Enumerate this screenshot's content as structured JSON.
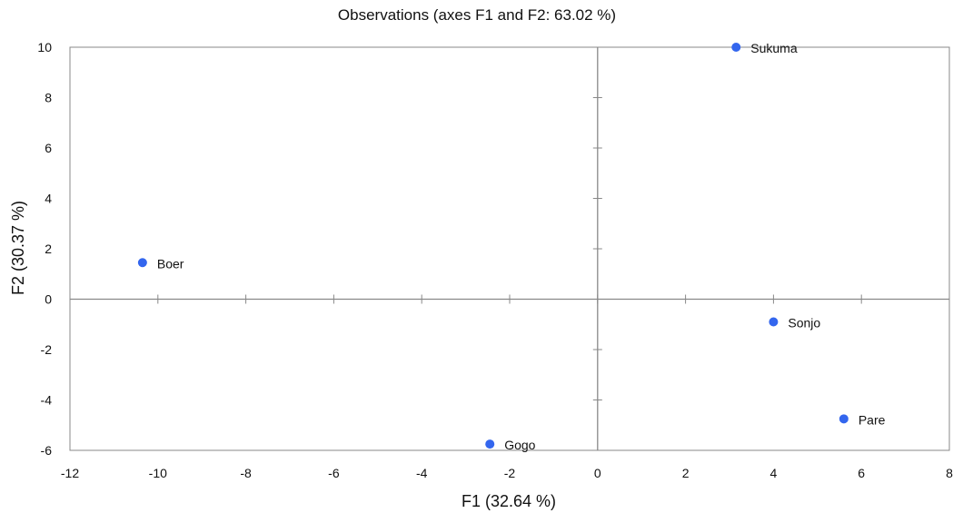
{
  "chart_data": {
    "type": "scatter",
    "title": "Observations (axes F1 and F2: 63.02 %)",
    "xlabel": "F1 (32.64 %)",
    "ylabel": "F2 (30.37 %)",
    "xlim": [
      -12,
      8
    ],
    "ylim": [
      -6,
      10
    ],
    "xticks": [
      -12,
      -10,
      -8,
      -6,
      -4,
      -2,
      0,
      2,
      4,
      6,
      8
    ],
    "yticks": [
      -6,
      -4,
      -2,
      0,
      2,
      4,
      6,
      8,
      10
    ],
    "grid": false,
    "reference_lines": {
      "x": 0,
      "y": 0
    },
    "marker_color": "#3366ee",
    "points": [
      {
        "label": "Sukuma",
        "x": 3.15,
        "y": 10.0
      },
      {
        "label": "Boer",
        "x": -10.35,
        "y": 1.45
      },
      {
        "label": "Sonjo",
        "x": 4.0,
        "y": -0.9
      },
      {
        "label": "Pare",
        "x": 5.6,
        "y": -4.75
      },
      {
        "label": "Gogo",
        "x": -2.45,
        "y": -5.75
      }
    ]
  }
}
